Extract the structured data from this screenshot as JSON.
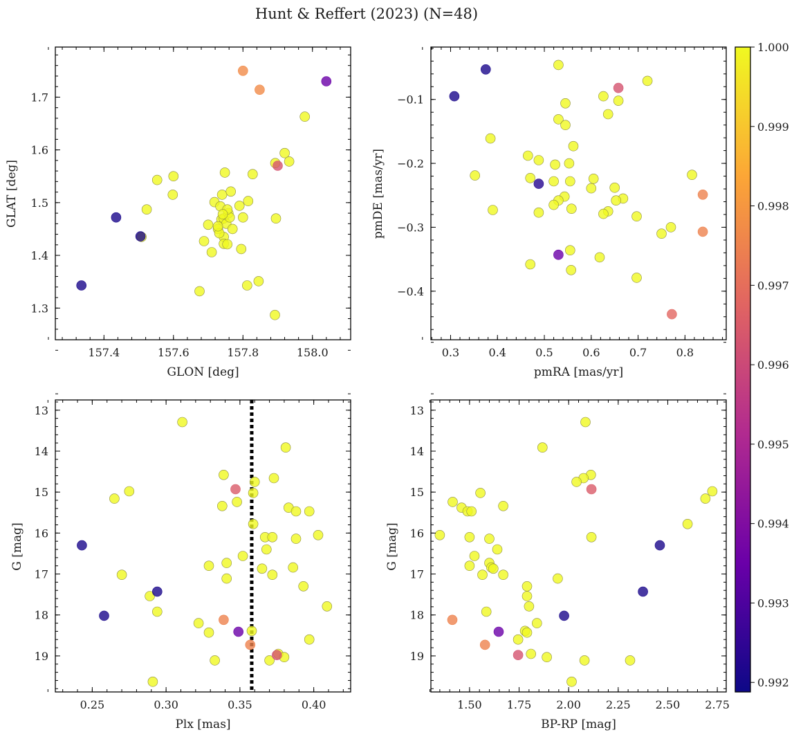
{
  "figure": {
    "title": "Hunt & Reffert (2023) (N=48)",
    "colorbar": {
      "vmin": 0.99188,
      "vmax": 1.0,
      "ticks": [
        0.992,
        0.993,
        0.994,
        0.995,
        0.996,
        0.997,
        0.998,
        0.999,
        1.0
      ],
      "tick_labels": [
        "0.992",
        "0.993",
        "0.994",
        "0.995",
        "0.996",
        "0.997",
        "0.998",
        "0.999",
        "1.000"
      ],
      "colormap": "plasma",
      "stops": [
        "#0d0887",
        "#6a00a8",
        "#b12a90",
        "#e16462",
        "#fca636",
        "#f0f921"
      ]
    }
  },
  "chart_data": [
    {
      "type": "scatter",
      "panel": "top-left",
      "xlabel": "GLON [deg]",
      "ylabel": "GLAT [deg]",
      "xlim": [
        157.26,
        158.11
      ],
      "ylim": [
        1.24,
        1.795
      ],
      "xticks": [
        157.4,
        157.6,
        157.8,
        158.0
      ],
      "xtick_labels": [
        "157.4",
        "157.6",
        "157.8",
        "158.0"
      ],
      "yticks": [
        1.3,
        1.4,
        1.5,
        1.6,
        1.7
      ],
      "ytick_labels": [
        "1.3",
        "1.4",
        "1.5",
        "1.6",
        "1.7"
      ],
      "points": [
        [
          157.335,
          1.343,
          0.9921
        ],
        [
          157.435,
          1.472,
          0.9921
        ],
        [
          157.505,
          1.436,
          0.9921
        ],
        [
          157.8,
          1.75,
          0.9977
        ],
        [
          157.848,
          1.714,
          0.9977
        ],
        [
          158.04,
          1.73,
          0.9935
        ],
        [
          157.9,
          1.57,
          0.9963
        ],
        [
          157.978,
          1.663,
          1.0
        ],
        [
          157.92,
          1.594,
          1.0
        ],
        [
          157.933,
          1.578,
          1.0
        ],
        [
          157.893,
          1.575,
          1.0
        ],
        [
          157.895,
          1.47,
          1.0
        ],
        [
          157.892,
          1.287,
          1.0
        ],
        [
          157.828,
          1.554,
          1.0
        ],
        [
          157.6,
          1.55,
          1.0
        ],
        [
          157.553,
          1.543,
          1.0
        ],
        [
          157.598,
          1.515,
          1.0
        ],
        [
          157.523,
          1.487,
          1.0
        ],
        [
          157.508,
          1.435,
          1.0
        ],
        [
          157.675,
          1.332,
          1.0
        ],
        [
          157.688,
          1.427,
          1.0
        ],
        [
          157.7,
          1.458,
          1.0
        ],
        [
          157.71,
          1.406,
          1.0
        ],
        [
          157.718,
          1.501,
          1.0
        ],
        [
          157.728,
          1.45,
          1.0
        ],
        [
          157.735,
          1.493,
          1.0
        ],
        [
          157.738,
          1.468,
          1.0
        ],
        [
          157.74,
          1.515,
          1.0
        ],
        [
          157.745,
          1.47,
          1.0
        ],
        [
          157.745,
          1.435,
          1.0
        ],
        [
          157.745,
          1.422,
          1.0
        ],
        [
          157.748,
          1.557,
          1.0
        ],
        [
          157.752,
          1.46,
          1.0
        ],
        [
          157.755,
          1.421,
          1.0
        ],
        [
          157.758,
          1.48,
          1.0
        ],
        [
          157.762,
          1.472,
          1.0
        ],
        [
          157.765,
          1.521,
          1.0
        ],
        [
          157.79,
          1.494,
          1.0
        ],
        [
          157.795,
          1.412,
          1.0
        ],
        [
          157.8,
          1.472,
          1.0
        ],
        [
          157.815,
          1.503,
          1.0
        ],
        [
          157.812,
          1.343,
          1.0
        ],
        [
          157.845,
          1.351,
          1.0
        ],
        [
          157.732,
          1.442,
          1.0
        ],
        [
          157.755,
          1.487,
          1.0
        ],
        [
          157.77,
          1.45,
          1.0
        ],
        [
          157.742,
          1.478,
          1.0
        ],
        [
          157.728,
          1.455,
          1.0
        ]
      ]
    },
    {
      "type": "scatter",
      "panel": "top-right",
      "xlabel": "pmRA [mas/yr]",
      "ylabel": "pmDE [mas/yr]",
      "xlim": [
        0.258,
        0.888
      ],
      "ylim": [
        -0.476,
        -0.018
      ],
      "xticks": [
        0.3,
        0.4,
        0.5,
        0.6,
        0.7,
        0.8
      ],
      "xtick_labels": [
        "0.3",
        "0.4",
        "0.5",
        "0.6",
        "0.7",
        "0.8"
      ],
      "yticks": [
        -0.1,
        -0.2,
        -0.3,
        -0.4
      ],
      "ytick_labels": [
        "−0.1",
        "−0.2",
        "−0.3",
        "−0.4"
      ],
      "points": [
        [
          0.308,
          -0.095,
          0.9921
        ],
        [
          0.375,
          -0.053,
          0.9921
        ],
        [
          0.488,
          -0.232,
          0.9923
        ],
        [
          0.53,
          -0.343,
          0.9935
        ],
        [
          0.658,
          -0.082,
          0.9963
        ],
        [
          0.772,
          -0.436,
          0.9968
        ],
        [
          0.838,
          -0.249,
          0.9975
        ],
        [
          0.838,
          -0.307,
          0.9975
        ],
        [
          0.53,
          -0.046,
          1.0
        ],
        [
          0.72,
          -0.071,
          1.0
        ],
        [
          0.545,
          -0.106,
          1.0
        ],
        [
          0.626,
          -0.095,
          1.0
        ],
        [
          0.658,
          -0.102,
          1.0
        ],
        [
          0.636,
          -0.123,
          1.0
        ],
        [
          0.53,
          -0.131,
          1.0
        ],
        [
          0.545,
          -0.14,
          1.0
        ],
        [
          0.385,
          -0.161,
          1.0
        ],
        [
          0.562,
          -0.173,
          1.0
        ],
        [
          0.465,
          -0.188,
          1.0
        ],
        [
          0.488,
          -0.195,
          1.0
        ],
        [
          0.553,
          -0.2,
          1.0
        ],
        [
          0.523,
          -0.202,
          1.0
        ],
        [
          0.352,
          -0.219,
          1.0
        ],
        [
          0.815,
          -0.218,
          1.0
        ],
        [
          0.47,
          -0.223,
          1.0
        ],
        [
          0.605,
          -0.224,
          1.0
        ],
        [
          0.52,
          -0.228,
          1.0
        ],
        [
          0.555,
          -0.228,
          1.0
        ],
        [
          0.65,
          -0.238,
          1.0
        ],
        [
          0.6,
          -0.239,
          1.0
        ],
        [
          0.543,
          -0.252,
          1.0
        ],
        [
          0.668,
          -0.255,
          1.0
        ],
        [
          0.653,
          -0.258,
          1.0
        ],
        [
          0.53,
          -0.258,
          1.0
        ],
        [
          0.52,
          -0.265,
          1.0
        ],
        [
          0.39,
          -0.273,
          1.0
        ],
        [
          0.558,
          -0.271,
          1.0
        ],
        [
          0.636,
          -0.275,
          1.0
        ],
        [
          0.488,
          -0.277,
          1.0
        ],
        [
          0.626,
          -0.279,
          1.0
        ],
        [
          0.697,
          -0.283,
          1.0
        ],
        [
          0.77,
          -0.3,
          1.0
        ],
        [
          0.75,
          -0.31,
          1.0
        ],
        [
          0.555,
          -0.336,
          1.0
        ],
        [
          0.618,
          -0.347,
          1.0
        ],
        [
          0.47,
          -0.358,
          1.0
        ],
        [
          0.557,
          -0.367,
          1.0
        ],
        [
          0.697,
          -0.379,
          1.0
        ]
      ]
    },
    {
      "type": "scatter",
      "panel": "bottom-left",
      "xlabel": "Plx [mas]",
      "ylabel": "G [mag]",
      "xlim": [
        0.225,
        0.425
      ],
      "ylim": [
        19.88,
        12.75
      ],
      "y_inverted": true,
      "vline": {
        "x": 0.358,
        "style": "dotted",
        "color": "#000000"
      },
      "xticks": [
        0.25,
        0.3,
        0.35,
        0.4
      ],
      "xtick_labels": [
        "0.25",
        "0.30",
        "0.35",
        "0.40"
      ],
      "yticks": [
        13,
        14,
        15,
        16,
        17,
        18,
        19
      ],
      "ytick_labels": [
        "13",
        "14",
        "15",
        "16",
        "17",
        "18",
        "19"
      ],
      "points": [
        [
          0.243,
          16.3,
          0.9921
        ],
        [
          0.258,
          18.02,
          0.9921
        ],
        [
          0.294,
          17.43,
          0.9921
        ],
        [
          0.349,
          18.41,
          0.9935
        ],
        [
          0.347,
          14.93,
          0.9965
        ],
        [
          0.375,
          18.98,
          0.9963
        ],
        [
          0.339,
          18.12,
          0.9975
        ],
        [
          0.357,
          18.73,
          0.9975
        ],
        [
          0.311,
          13.29,
          1.0
        ],
        [
          0.381,
          13.91,
          1.0
        ],
        [
          0.339,
          14.58,
          1.0
        ],
        [
          0.373,
          14.66,
          1.0
        ],
        [
          0.36,
          14.75,
          1.0
        ],
        [
          0.275,
          14.98,
          1.0
        ],
        [
          0.359,
          15.02,
          1.0
        ],
        [
          0.265,
          15.16,
          1.0
        ],
        [
          0.348,
          15.24,
          1.0
        ],
        [
          0.338,
          15.34,
          1.0
        ],
        [
          0.383,
          15.38,
          1.0
        ],
        [
          0.388,
          15.47,
          1.0
        ],
        [
          0.397,
          15.47,
          1.0
        ],
        [
          0.359,
          15.78,
          1.0
        ],
        [
          0.403,
          16.05,
          1.0
        ],
        [
          0.367,
          16.1,
          1.0
        ],
        [
          0.372,
          16.1,
          1.0
        ],
        [
          0.388,
          16.14,
          1.0
        ],
        [
          0.368,
          16.4,
          1.0
        ],
        [
          0.352,
          16.56,
          1.0
        ],
        [
          0.341,
          16.73,
          1.0
        ],
        [
          0.329,
          16.8,
          1.0
        ],
        [
          0.386,
          16.84,
          1.0
        ],
        [
          0.365,
          16.87,
          1.0
        ],
        [
          0.27,
          17.02,
          1.0
        ],
        [
          0.372,
          17.02,
          1.0
        ],
        [
          0.341,
          17.11,
          1.0
        ],
        [
          0.393,
          17.3,
          1.0
        ],
        [
          0.289,
          17.54,
          1.0
        ],
        [
          0.409,
          17.79,
          1.0
        ],
        [
          0.294,
          17.92,
          1.0
        ],
        [
          0.322,
          18.2,
          1.0
        ],
        [
          0.358,
          18.39,
          1.0
        ],
        [
          0.329,
          18.43,
          1.0
        ],
        [
          0.397,
          18.6,
          1.0
        ],
        [
          0.376,
          18.95,
          1.0
        ],
        [
          0.38,
          19.03,
          1.0
        ],
        [
          0.333,
          19.11,
          1.0
        ],
        [
          0.37,
          19.11,
          1.0
        ],
        [
          0.291,
          19.63,
          1.0
        ]
      ]
    },
    {
      "type": "scatter",
      "panel": "bottom-right",
      "xlabel": "BP-RP [mag]",
      "ylabel": "G [mag]",
      "xlim": [
        1.305,
        2.795
      ],
      "ylim": [
        19.88,
        12.75
      ],
      "y_inverted": true,
      "xticks": [
        1.5,
        1.75,
        2.0,
        2.25,
        2.5,
        2.75
      ],
      "xtick_labels": [
        "1.50",
        "1.75",
        "2.00",
        "2.25",
        "2.50",
        "2.75"
      ],
      "yticks": [
        13,
        14,
        15,
        16,
        17,
        18,
        19
      ],
      "ytick_labels": [
        "13",
        "14",
        "15",
        "16",
        "17",
        "18",
        "19"
      ],
      "points": [
        [
          2.46,
          16.3,
          0.9921
        ],
        [
          1.977,
          18.02,
          0.9921
        ],
        [
          2.375,
          17.43,
          0.9921
        ],
        [
          1.647,
          18.41,
          0.9935
        ],
        [
          2.115,
          14.93,
          0.9965
        ],
        [
          1.745,
          18.98,
          0.9963
        ],
        [
          1.413,
          18.12,
          0.9975
        ],
        [
          1.578,
          18.73,
          0.9975
        ],
        [
          2.085,
          13.29,
          1.0
        ],
        [
          1.868,
          13.91,
          1.0
        ],
        [
          2.112,
          14.58,
          1.0
        ],
        [
          2.075,
          14.66,
          1.0
        ],
        [
          2.04,
          14.75,
          1.0
        ],
        [
          2.725,
          14.98,
          1.0
        ],
        [
          1.555,
          15.02,
          1.0
        ],
        [
          2.69,
          15.16,
          1.0
        ],
        [
          1.415,
          15.24,
          1.0
        ],
        [
          1.67,
          15.34,
          1.0
        ],
        [
          1.46,
          15.38,
          1.0
        ],
        [
          1.49,
          15.47,
          1.0
        ],
        [
          1.51,
          15.47,
          1.0
        ],
        [
          2.6,
          15.78,
          1.0
        ],
        [
          1.35,
          16.05,
          1.0
        ],
        [
          1.5,
          16.1,
          1.0
        ],
        [
          2.115,
          16.1,
          1.0
        ],
        [
          1.6,
          16.14,
          1.0
        ],
        [
          1.64,
          16.4,
          1.0
        ],
        [
          1.525,
          16.56,
          1.0
        ],
        [
          1.6,
          16.73,
          1.0
        ],
        [
          1.5,
          16.8,
          1.0
        ],
        [
          1.61,
          16.84,
          1.0
        ],
        [
          1.62,
          16.87,
          1.0
        ],
        [
          1.565,
          17.02,
          1.0
        ],
        [
          1.67,
          17.02,
          1.0
        ],
        [
          1.945,
          17.11,
          1.0
        ],
        [
          1.79,
          17.3,
          1.0
        ],
        [
          1.79,
          17.54,
          1.0
        ],
        [
          1.585,
          17.92,
          1.0
        ],
        [
          1.8,
          17.79,
          1.0
        ],
        [
          1.84,
          18.2,
          1.0
        ],
        [
          1.78,
          18.39,
          1.0
        ],
        [
          1.79,
          18.43,
          1.0
        ],
        [
          1.745,
          18.6,
          1.0
        ],
        [
          1.81,
          18.95,
          1.0
        ],
        [
          1.89,
          19.03,
          1.0
        ],
        [
          2.08,
          19.11,
          1.0
        ],
        [
          2.31,
          19.11,
          1.0
        ],
        [
          2.015,
          19.63,
          1.0
        ]
      ]
    }
  ]
}
